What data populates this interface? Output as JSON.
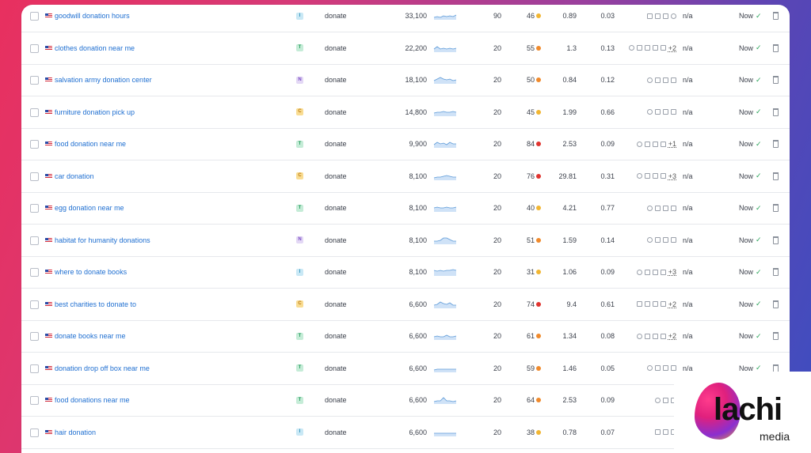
{
  "table": {
    "rows": [
      {
        "keyword": "goodwill donation hours",
        "intent": "I",
        "label": "donate",
        "volume": "33,100",
        "kd_results": "90",
        "kd": "46",
        "kd_color": "#f2b632",
        "cpc": "0.89",
        "competition": "0.03",
        "features": [
          "image-icon",
          "comment-icon",
          "list-icon",
          "target-icon"
        ],
        "more": "",
        "na": "n/a",
        "updated": "Now"
      },
      {
        "keyword": "clothes donation near me",
        "intent": "T",
        "label": "donate",
        "volume": "22,200",
        "kd_results": "20",
        "kd": "55",
        "kd_color": "#f08a2c",
        "cpc": "1.3",
        "competition": "0.13",
        "features": [
          "pin-icon",
          "image-icon",
          "link-icon",
          "photo-icon",
          "list-icon"
        ],
        "more": "+2",
        "na": "n/a",
        "updated": "Now"
      },
      {
        "keyword": "salvation army donation center",
        "intent": "N",
        "label": "donate",
        "volume": "18,100",
        "kd_results": "20",
        "kd": "50",
        "kd_color": "#f08a2c",
        "cpc": "0.84",
        "competition": "0.12",
        "features": [
          "pin-icon",
          "link-icon",
          "comment-icon",
          "list-icon"
        ],
        "more": "",
        "na": "n/a",
        "updated": "Now"
      },
      {
        "keyword": "furniture donation pick up",
        "intent": "C",
        "label": "donate",
        "volume": "14,800",
        "kd_results": "20",
        "kd": "45",
        "kd_color": "#f2b632",
        "cpc": "1.99",
        "competition": "0.66",
        "features": [
          "pin-icon",
          "link-icon",
          "list-icon",
          "list-icon"
        ],
        "more": "",
        "na": "n/a",
        "updated": "Now"
      },
      {
        "keyword": "food donation near me",
        "intent": "T",
        "label": "donate",
        "volume": "9,900",
        "kd_results": "20",
        "kd": "84",
        "kd_color": "#e0342f",
        "cpc": "2.53",
        "competition": "0.09",
        "features": [
          "pin-icon",
          "link-icon",
          "photo-icon",
          "comment-icon"
        ],
        "more": "+1",
        "na": "n/a",
        "updated": "Now"
      },
      {
        "keyword": "car donation",
        "intent": "C",
        "label": "donate",
        "volume": "8,100",
        "kd_results": "20",
        "kd": "76",
        "kd_color": "#e0342f",
        "cpc": "29.81",
        "competition": "0.31",
        "features": [
          "pin-icon",
          "image-icon",
          "link-icon",
          "video-icon"
        ],
        "more": "+3",
        "na": "n/a",
        "updated": "Now"
      },
      {
        "keyword": "egg donation near me",
        "intent": "T",
        "label": "donate",
        "volume": "8,100",
        "kd_results": "20",
        "kd": "40",
        "kd_color": "#f2b632",
        "cpc": "4.21",
        "competition": "0.77",
        "features": [
          "pin-icon",
          "link-icon",
          "list-icon",
          "list-icon"
        ],
        "more": "",
        "na": "n/a",
        "updated": "Now"
      },
      {
        "keyword": "habitat for humanity donations",
        "intent": "N",
        "label": "donate",
        "volume": "8,100",
        "kd_results": "20",
        "kd": "51",
        "kd_color": "#f08a2c",
        "cpc": "1.59",
        "competition": "0.14",
        "features": [
          "pin-icon",
          "link-icon",
          "list-icon",
          "news-icon"
        ],
        "more": "",
        "na": "n/a",
        "updated": "Now"
      },
      {
        "keyword": "where to donate books",
        "intent": "I",
        "label": "donate",
        "volume": "8,100",
        "kd_results": "20",
        "kd": "31",
        "kd_color": "#f2b632",
        "cpc": "1.06",
        "competition": "0.09",
        "features": [
          "pin-icon",
          "image-icon",
          "link-icon",
          "video-icon"
        ],
        "more": "+3",
        "na": "n/a",
        "updated": "Now"
      },
      {
        "keyword": "best charities to donate to",
        "intent": "C",
        "label": "donate",
        "volume": "6,600",
        "kd_results": "20",
        "kd": "74",
        "kd_color": "#e0342f",
        "cpc": "9.4",
        "competition": "0.61",
        "features": [
          "image-icon",
          "link-icon",
          "photo-icon",
          "list-icon"
        ],
        "more": "+2",
        "na": "n/a",
        "updated": "Now"
      },
      {
        "keyword": "donate books near me",
        "intent": "T",
        "label": "donate",
        "volume": "6,600",
        "kd_results": "20",
        "kd": "61",
        "kd_color": "#f08a2c",
        "cpc": "1.34",
        "competition": "0.08",
        "features": [
          "pin-icon",
          "image-icon",
          "link-icon",
          "video-icon"
        ],
        "more": "+2",
        "na": "n/a",
        "updated": "Now"
      },
      {
        "keyword": "donation drop off box near me",
        "intent": "T",
        "label": "donate",
        "volume": "6,600",
        "kd_results": "20",
        "kd": "59",
        "kd_color": "#f08a2c",
        "cpc": "1.46",
        "competition": "0.05",
        "features": [
          "pin-icon",
          "link-icon",
          "list-icon",
          "list-icon"
        ],
        "more": "",
        "na": "n/a",
        "updated": "Now"
      },
      {
        "keyword": "food donations near me",
        "intent": "T",
        "label": "donate",
        "volume": "6,600",
        "kd_results": "20",
        "kd": "64",
        "kd_color": "#f08a2c",
        "cpc": "2.53",
        "competition": "0.09",
        "features": [
          "pin-icon",
          "link-icon",
          "photo-icon"
        ],
        "more": "",
        "na": "n/a",
        "updated": "Now"
      },
      {
        "keyword": "hair donation",
        "intent": "I",
        "label": "donate",
        "volume": "6,600",
        "kd_results": "20",
        "kd": "38",
        "kd_color": "#f2b632",
        "cpc": "0.78",
        "competition": "0.07",
        "features": [
          "image-icon",
          "link-icon",
          "list-icon"
        ],
        "more": "",
        "na": "n/a",
        "updated": "Now"
      }
    ]
  },
  "logo": {
    "word": "lachi",
    "sub": "media"
  },
  "colors": {
    "link": "#1f6fd1",
    "check": "#2aa35a",
    "border": "#e6e8ec"
  }
}
